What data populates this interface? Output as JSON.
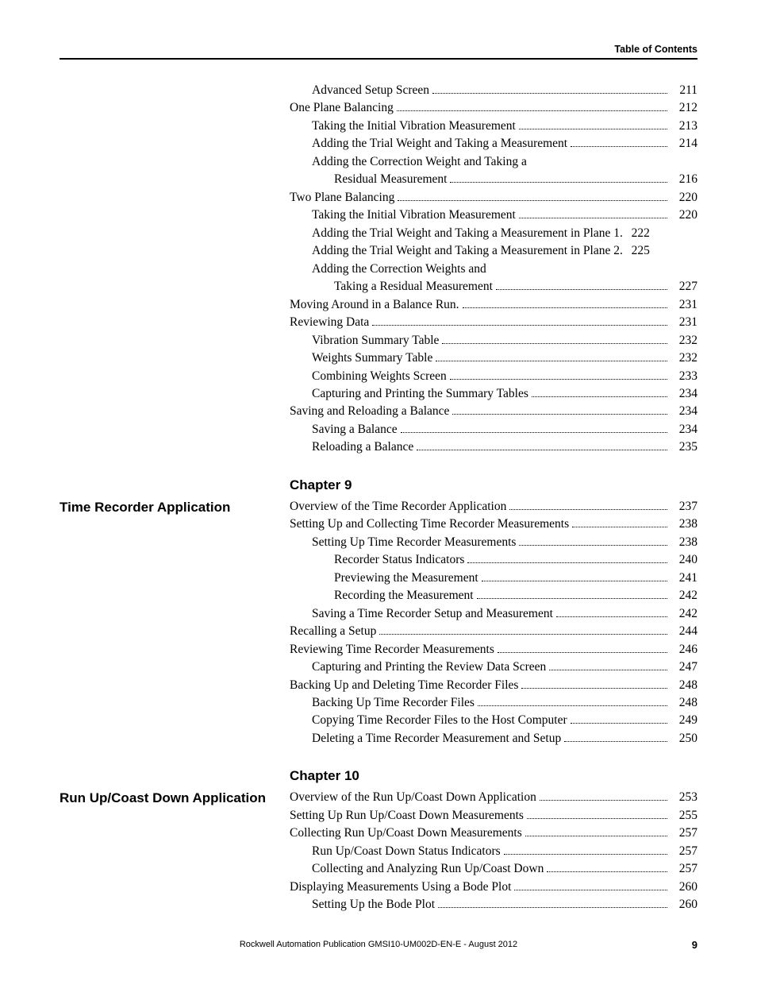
{
  "header": {
    "title": "Table of Contents"
  },
  "footer": {
    "publication": "Rockwell Automation Publication GMSI10-UM002D-EN-E - August 2012",
    "page_number": "9"
  },
  "blocks": [
    {
      "section_title": null,
      "chapter": null,
      "entries": [
        {
          "indent": 1,
          "text": "Advanced Setup Screen",
          "page": "211"
        },
        {
          "indent": 0,
          "text": "One Plane Balancing",
          "page": "212"
        },
        {
          "indent": 1,
          "text": "Taking the Initial Vibration Measurement",
          "page": "213"
        },
        {
          "indent": 1,
          "text": "Adding the Trial Weight and Taking a Measurement",
          "page": "214"
        },
        {
          "indent": 1,
          "text": "Adding the Correction Weight and Taking a",
          "page": null
        },
        {
          "indent": 2,
          "text": "Residual Measurement",
          "page": "216"
        },
        {
          "indent": 0,
          "text": "Two Plane Balancing",
          "page": "220"
        },
        {
          "indent": 1,
          "text": "Taking the Initial Vibration Measurement",
          "page": "220"
        },
        {
          "indent": 1,
          "text": "Adding the Trial Weight and Taking a Measurement in Plane 1",
          "page": "222",
          "tight": true
        },
        {
          "indent": 1,
          "text": "Adding the Trial Weight and Taking a Measurement in Plane 2",
          "page": "225",
          "tight": true
        },
        {
          "indent": 1,
          "text": "Adding the Correction Weights and",
          "page": null
        },
        {
          "indent": 2,
          "text": "Taking a Residual Measurement",
          "page": "227"
        },
        {
          "indent": 0,
          "text": "Moving Around in a Balance Run.",
          "page": "231"
        },
        {
          "indent": 0,
          "text": "Reviewing Data",
          "page": "231"
        },
        {
          "indent": 1,
          "text": "Vibration Summary Table",
          "page": "232"
        },
        {
          "indent": 1,
          "text": "Weights Summary Table",
          "page": "232"
        },
        {
          "indent": 1,
          "text": "Combining Weights Screen",
          "page": "233"
        },
        {
          "indent": 1,
          "text": "Capturing and Printing the Summary Tables",
          "page": "234"
        },
        {
          "indent": 0,
          "text": "Saving and Reloading a Balance",
          "page": "234"
        },
        {
          "indent": 1,
          "text": "Saving a Balance",
          "page": "234"
        },
        {
          "indent": 1,
          "text": "Reloading a Balance",
          "page": "235"
        }
      ]
    },
    {
      "section_title": "Time Recorder Application",
      "chapter": "Chapter 9",
      "entries": [
        {
          "indent": 0,
          "text": "Overview of the Time Recorder Application",
          "page": "237"
        },
        {
          "indent": 0,
          "text": "Setting Up and Collecting Time Recorder Measurements",
          "page": "238"
        },
        {
          "indent": 1,
          "text": "Setting Up Time Recorder Measurements",
          "page": "238"
        },
        {
          "indent": 2,
          "text": "Recorder Status Indicators",
          "page": "240"
        },
        {
          "indent": 2,
          "text": "Previewing the Measurement",
          "page": "241"
        },
        {
          "indent": 2,
          "text": "Recording the Measurement",
          "page": "242"
        },
        {
          "indent": 1,
          "text": "Saving a Time Recorder Setup and Measurement",
          "page": "242"
        },
        {
          "indent": 0,
          "text": "Recalling a Setup",
          "page": "244"
        },
        {
          "indent": 0,
          "text": "Reviewing Time Recorder Measurements",
          "page": "246"
        },
        {
          "indent": 1,
          "text": "Capturing and Printing the Review Data Screen",
          "page": "247"
        },
        {
          "indent": 0,
          "text": "Backing Up and Deleting Time Recorder Files",
          "page": "248"
        },
        {
          "indent": 1,
          "text": "Backing Up Time Recorder Files",
          "page": "248"
        },
        {
          "indent": 1,
          "text": "Copying Time Recorder Files to the Host Computer",
          "page": "249"
        },
        {
          "indent": 1,
          "text": "Deleting a Time Recorder Measurement and Setup",
          "page": "250"
        }
      ]
    },
    {
      "section_title": "Run Up/Coast Down Application",
      "chapter": "Chapter 10",
      "entries": [
        {
          "indent": 0,
          "text": "Overview of the Run Up/Coast Down Application",
          "page": "253"
        },
        {
          "indent": 0,
          "text": "Setting Up Run Up/Coast Down Measurements",
          "page": "255"
        },
        {
          "indent": 0,
          "text": "Collecting Run Up/Coast Down Measurements",
          "page": "257"
        },
        {
          "indent": 1,
          "text": "Run Up/Coast Down Status Indicators",
          "page": "257"
        },
        {
          "indent": 1,
          "text": "Collecting and Analyzing Run Up/Coast Down",
          "page": "257"
        },
        {
          "indent": 0,
          "text": "Displaying Measurements Using a Bode Plot",
          "page": "260"
        },
        {
          "indent": 1,
          "text": "Setting Up the Bode Plot",
          "page": "260"
        }
      ]
    }
  ]
}
